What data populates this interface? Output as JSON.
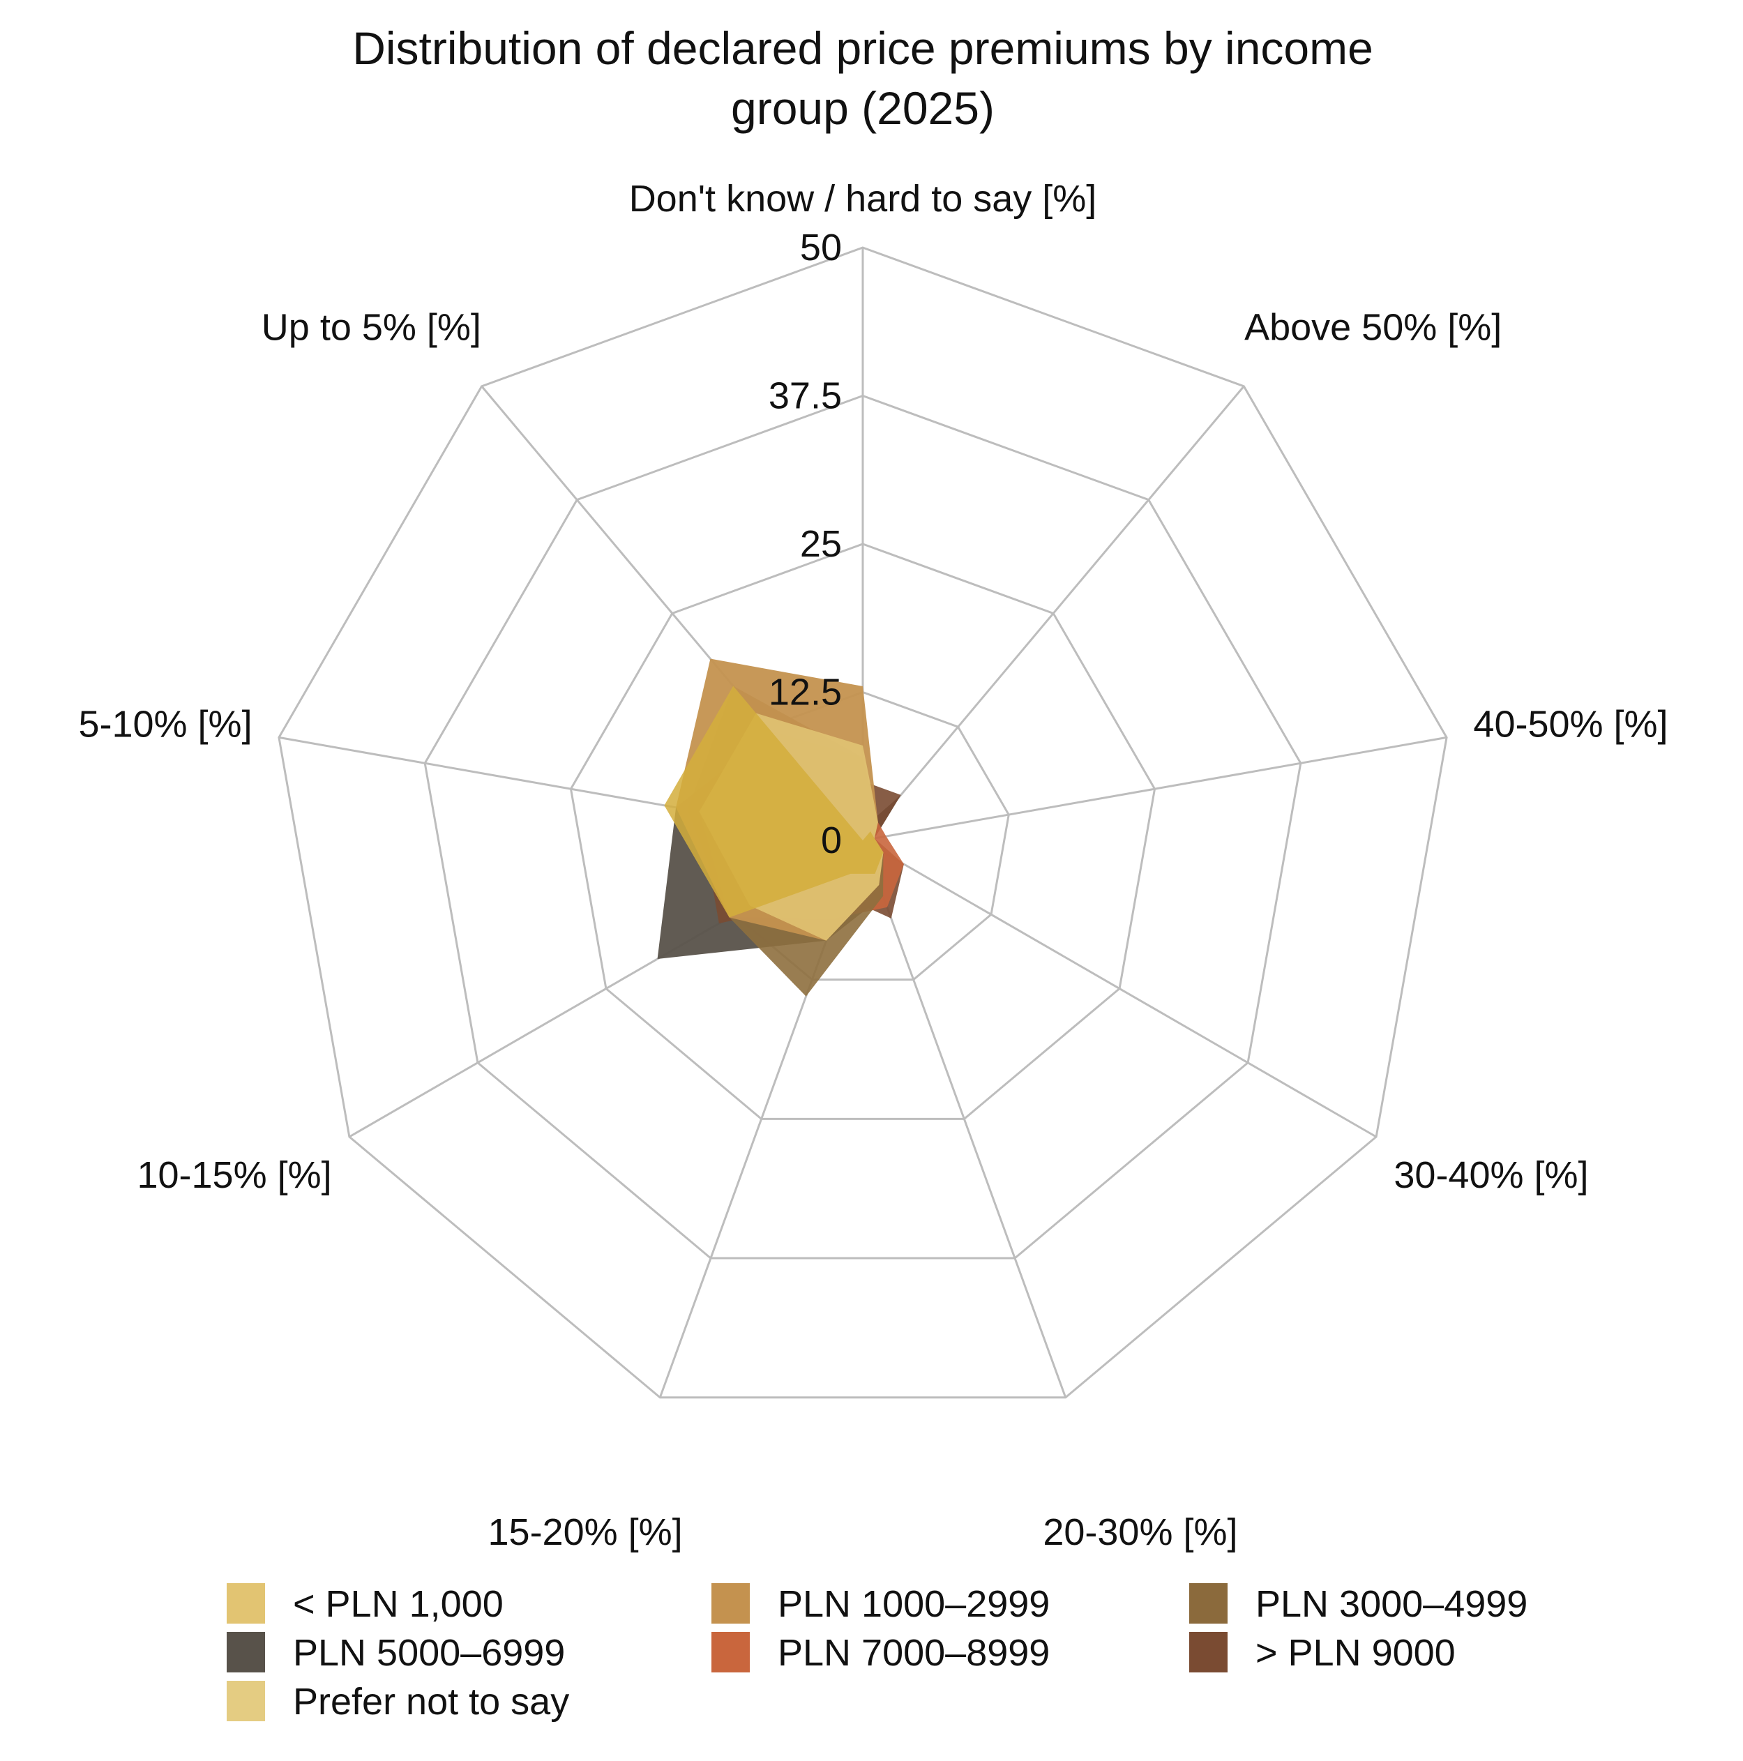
{
  "chart_data": {
    "type": "radar",
    "title": [
      "Distribution of declared price premiums by income",
      "group (2025)"
    ],
    "axes": [
      "Don't know / hard to say [%]",
      "Above 50% [%]",
      "40-50% [%]",
      "30-40% [%]",
      "20-30% [%]",
      "15-20% [%]",
      "10-15% [%]",
      "5-10% [%]",
      "Up to 5% [%]"
    ],
    "rlim": [
      0,
      50
    ],
    "ticks": [
      0,
      12.5,
      25,
      37.5,
      50
    ],
    "tick_labels": [
      "0",
      "12.5",
      "25",
      "37.5",
      "50"
    ],
    "grid": true,
    "legend_position": "bottom",
    "series": [
      {
        "name": "PLN 5000–6999",
        "color": "#59524a",
        "opacity": 0.95,
        "values": [
          1,
          5,
          1,
          2,
          5,
          9,
          20,
          16,
          12
        ]
      },
      {
        "name": "> PLN 9000",
        "color": "#7a4b32",
        "opacity": 0.9,
        "values": [
          5,
          5,
          1,
          4,
          7,
          5,
          14,
          14,
          12
        ]
      },
      {
        "name": "PLN 7000–8999",
        "color": "#c9663d",
        "opacity": 0.9,
        "values": [
          7,
          2,
          2,
          4,
          6,
          7,
          13,
          14,
          12
        ]
      },
      {
        "name": "PLN 3000–4999",
        "color": "#8e6f3e",
        "opacity": 0.9,
        "values": [
          7,
          2,
          1,
          2,
          5,
          14,
          13,
          15,
          17
        ]
      },
      {
        "name": "PLN 1000–2999",
        "color": "#c4924f",
        "opacity": 0.95,
        "values": [
          13,
          2,
          1,
          2,
          4,
          9,
          13,
          16,
          20
        ]
      },
      {
        "name": "Prefer not to say",
        "color": "#e2c674",
        "opacity": 0.85,
        "values": [
          8,
          2,
          1,
          2,
          4,
          9,
          11,
          14,
          14
        ]
      },
      {
        "name": "< PLN 1,000",
        "color": "#d4ae3c",
        "opacity": 0.85,
        "values": [
          0,
          1,
          1,
          2,
          3,
          3,
          13,
          17,
          17
        ]
      }
    ],
    "legend": [
      {
        "name": "< PLN 1,000",
        "color": "#e2c472"
      },
      {
        "name": "PLN 1000–2999",
        "color": "#c4924f"
      },
      {
        "name": "PLN 3000–4999",
        "color": "#8b6a3c"
      },
      {
        "name": "PLN 5000–6999",
        "color": "#58524a"
      },
      {
        "name": "PLN 7000–8999",
        "color": "#c9663d"
      },
      {
        "name": "> PLN 9000",
        "color": "#7a4b32"
      },
      {
        "name": "Prefer not to say",
        "color": "#e4cc82"
      }
    ]
  }
}
